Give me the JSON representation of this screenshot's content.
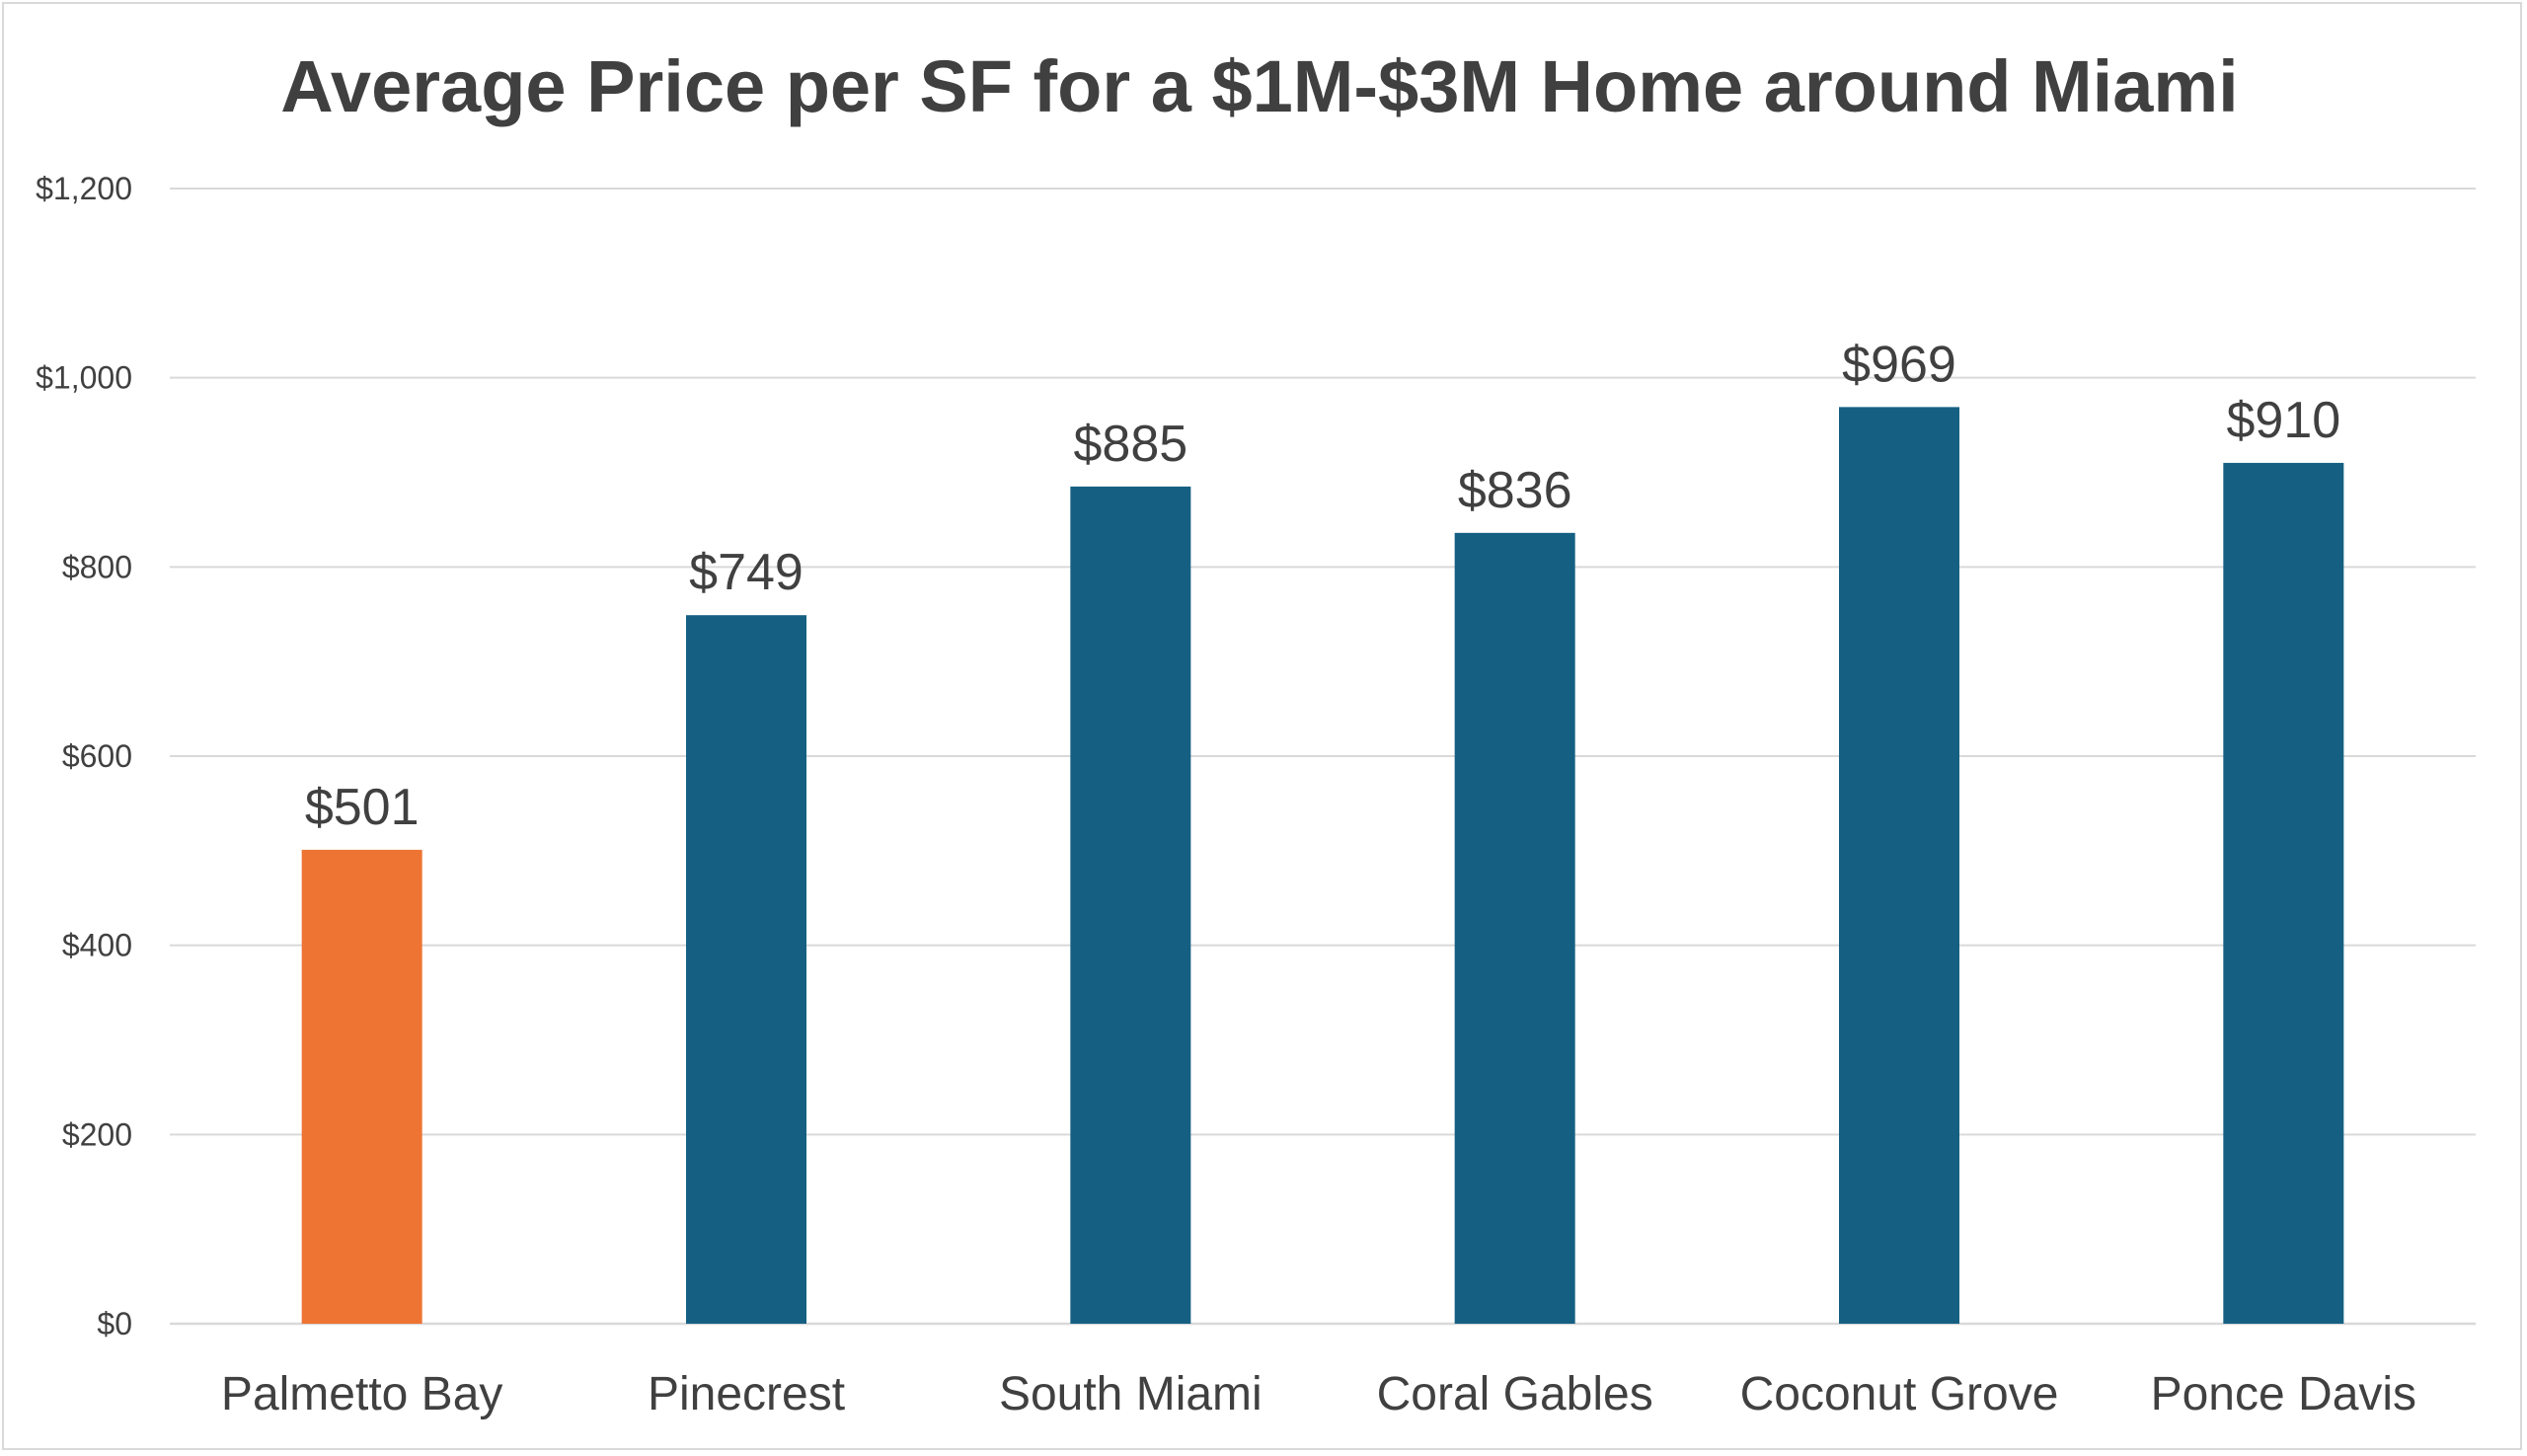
{
  "chart_data": {
    "type": "bar",
    "title": "Average Price per SF for a $1M-$3M Home around Miami",
    "xlabel": "",
    "ylabel": "",
    "categories": [
      "Palmetto Bay",
      "Pinecrest",
      "South Miami",
      "Coral Gables",
      "Coconut Grove",
      "Ponce Davis"
    ],
    "values": [
      501,
      749,
      885,
      836,
      969,
      910
    ],
    "data_labels": [
      "$501",
      "$749",
      "$885",
      "$836",
      "$969",
      "$910"
    ],
    "bar_colors": [
      "#ED7433",
      "#156082",
      "#156082",
      "#156082",
      "#156082",
      "#156082"
    ],
    "ylim": [
      0,
      1200
    ],
    "yticks": [
      0,
      200,
      400,
      600,
      800,
      1000,
      1200
    ],
    "ytick_labels": [
      "$0",
      "$200",
      "$400",
      "$600",
      "$800",
      "$1,000",
      "$1,200"
    ],
    "grid": true,
    "legend": "none"
  }
}
